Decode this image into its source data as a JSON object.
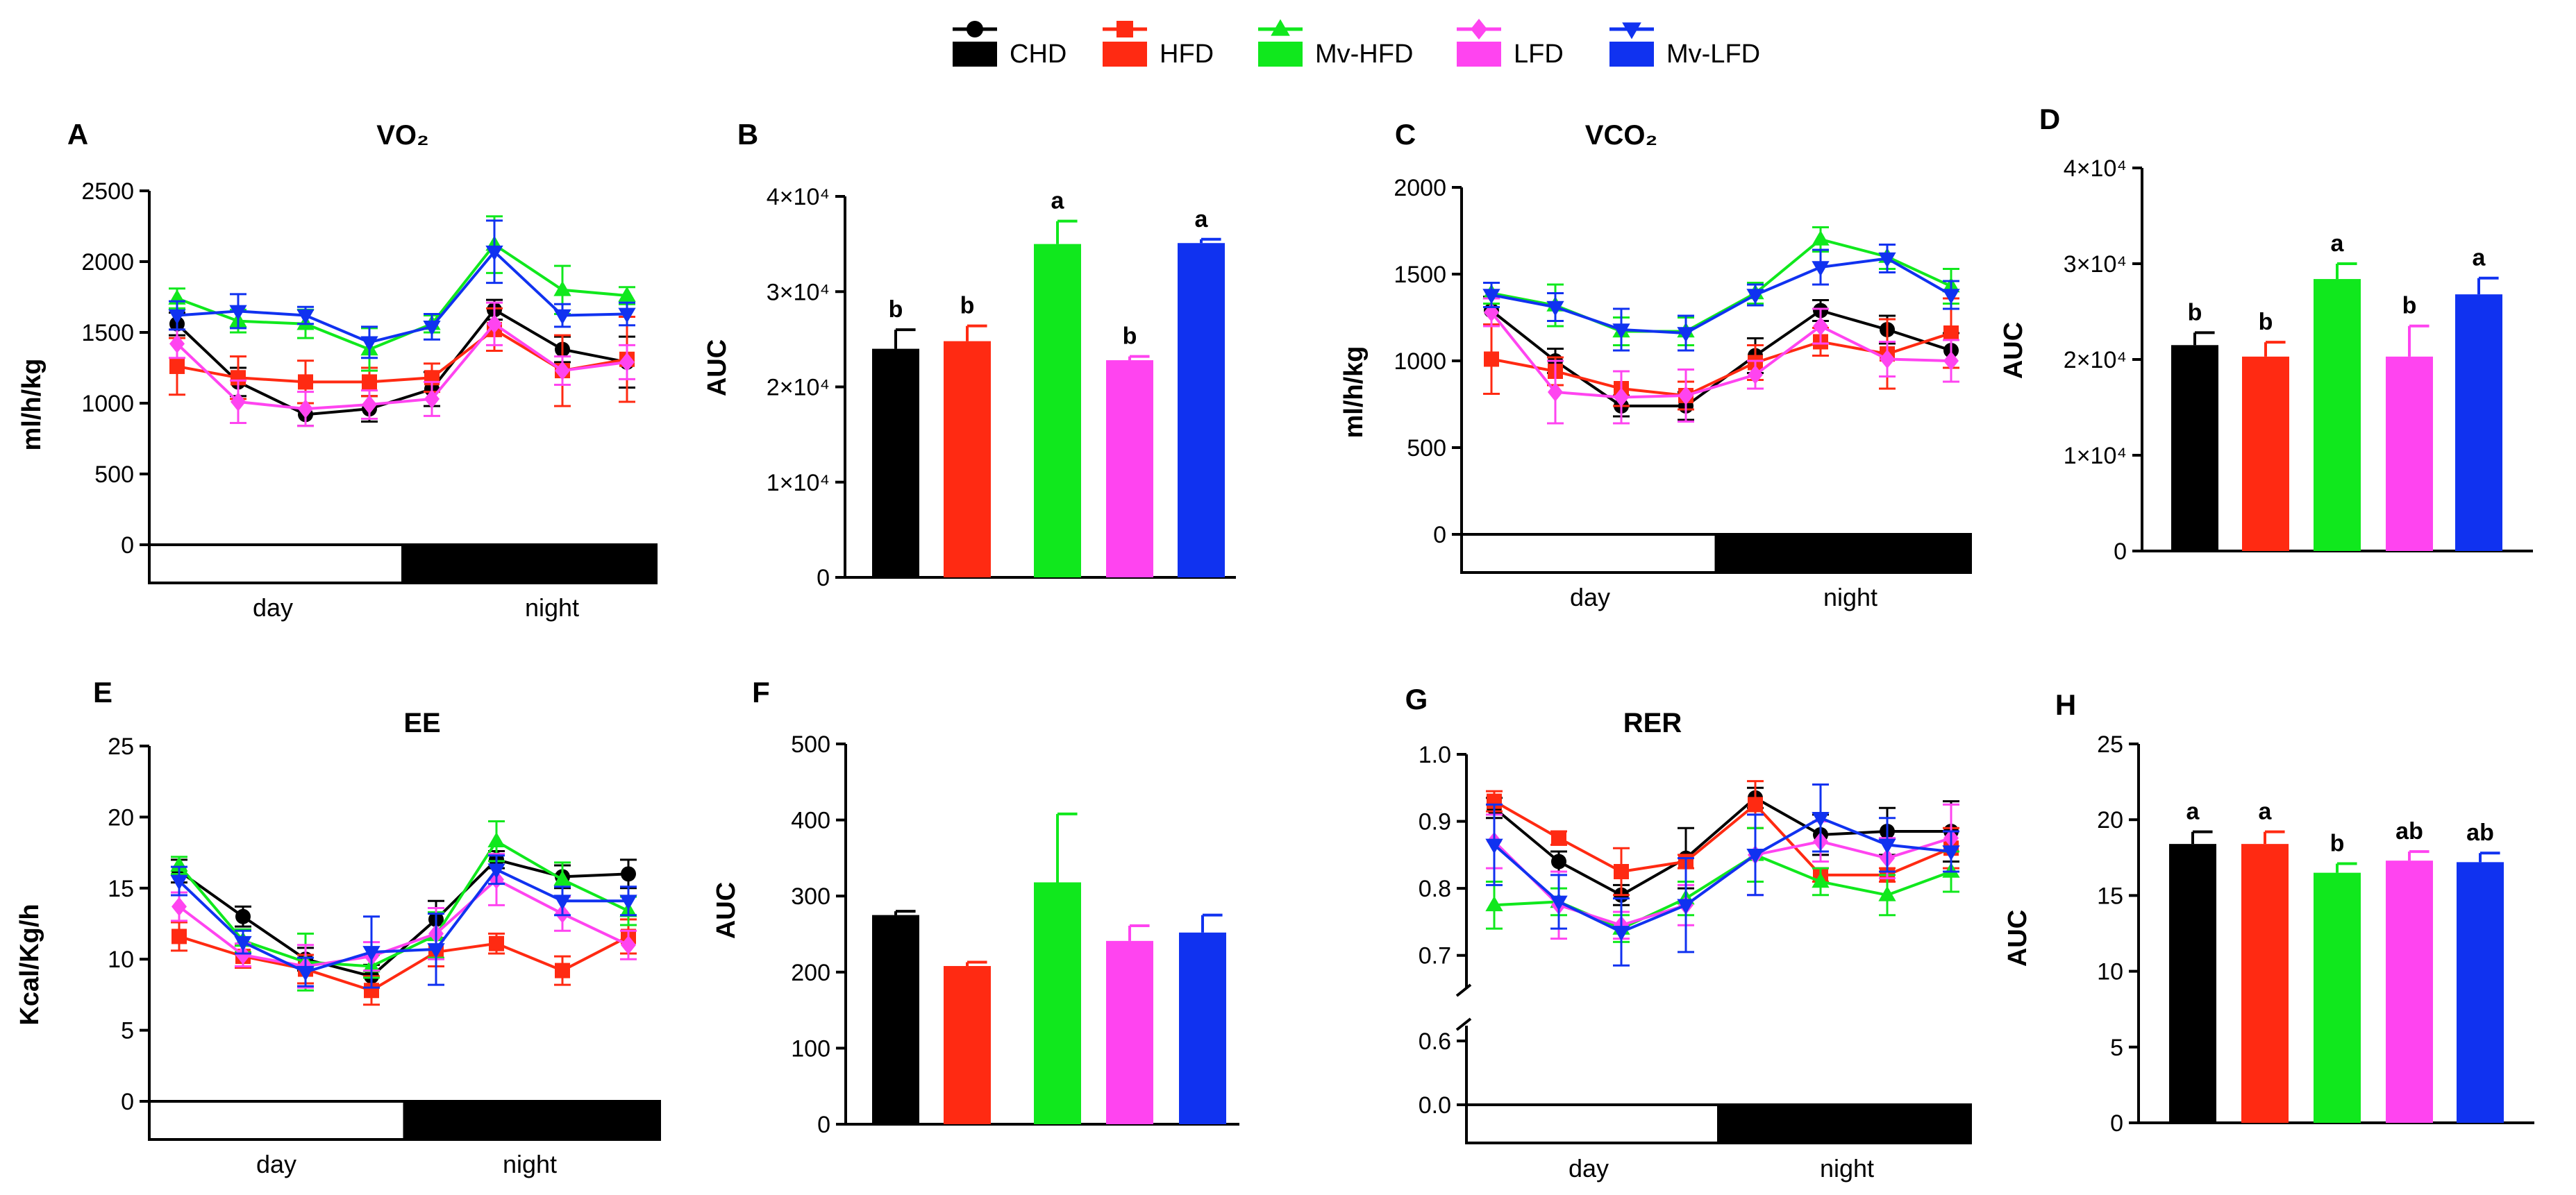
{
  "legend": [
    {
      "name": "CHD",
      "color": "#000000",
      "marker": "circle"
    },
    {
      "name": "HFD",
      "color": "#ff2a12",
      "marker": "square"
    },
    {
      "name": "Mv-HFD",
      "color": "#10e81d",
      "marker": "triangle-up"
    },
    {
      "name": "LFD",
      "color": "#ff44f0",
      "marker": "diamond"
    },
    {
      "name": "Mv-LFD",
      "color": "#1032f0",
      "marker": "triangle-down"
    }
  ],
  "chart_data": [
    {
      "panel": "A",
      "type": "line",
      "title": "VO₂",
      "ylabel": "ml/h/kg",
      "ylim": [
        0,
        2500
      ],
      "yticks": [
        0,
        500,
        1000,
        1500,
        2000,
        2500
      ],
      "yticklabels": [
        "0",
        "500",
        "1000",
        "1500",
        "2000",
        "2500"
      ],
      "x": [
        1,
        2,
        3,
        4,
        5,
        6,
        7,
        8
      ],
      "period_labels": [
        "day",
        "night"
      ],
      "series": [
        {
          "name": "CHD",
          "values": [
            1560,
            1150,
            920,
            960,
            1100,
            1660,
            1380,
            1290
          ],
          "errors": [
            80,
            100,
            80,
            90,
            120,
            70,
            90,
            180
          ]
        },
        {
          "name": "HFD",
          "values": [
            1260,
            1180,
            1150,
            1150,
            1180,
            1520,
            1230,
            1310
          ],
          "errors": [
            200,
            150,
            150,
            100,
            100,
            150,
            250,
            300
          ]
        },
        {
          "name": "Mv-HFD",
          "values": [
            1740,
            1580,
            1560,
            1380,
            1560,
            2120,
            1800,
            1760
          ],
          "errors": [
            70,
            80,
            100,
            150,
            60,
            200,
            170,
            60
          ]
        },
        {
          "name": "LFD",
          "values": [
            1420,
            1010,
            960,
            990,
            1030,
            1560,
            1230,
            1290
          ],
          "errors": [
            100,
            150,
            120,
            100,
            120,
            150,
            100,
            120
          ]
        },
        {
          "name": "Mv-LFD",
          "values": [
            1620,
            1650,
            1620,
            1430,
            1540,
            2070,
            1620,
            1630
          ],
          "errors": [
            100,
            120,
            60,
            110,
            90,
            220,
            80,
            80
          ]
        }
      ]
    },
    {
      "panel": "B",
      "type": "bar",
      "ylabel": "AUC",
      "ylim": [
        0,
        40000
      ],
      "yticks": [
        0,
        10000,
        20000,
        30000,
        40000
      ],
      "yticklabels": [
        "0",
        "1×10⁴",
        "2×10⁴",
        "3×10⁴",
        "4×10⁴"
      ],
      "categories": [
        "CHD",
        "HFD",
        "Mv-HFD",
        "LFD",
        "Mv-LFD"
      ],
      "values": [
        24000,
        24800,
        35000,
        22800,
        35100
      ],
      "errors": [
        2000,
        1600,
        2400,
        400,
        400
      ],
      "sig": [
        "b",
        "b",
        "a",
        "b",
        "a"
      ]
    },
    {
      "panel": "C",
      "type": "line",
      "title": "VCO₂",
      "ylabel": "ml/h/kg",
      "ylim": [
        0,
        2000
      ],
      "yticks": [
        0,
        500,
        1000,
        1500,
        2000
      ],
      "yticklabels": [
        "0",
        "500",
        "1000",
        "1500",
        "2000"
      ],
      "x": [
        1,
        2,
        3,
        4,
        5,
        6,
        7,
        8
      ],
      "period_labels": [
        "day",
        "night"
      ],
      "series": [
        {
          "name": "CHD",
          "values": [
            1290,
            1000,
            740,
            740,
            1030,
            1290,
            1180,
            1060
          ],
          "errors": [
            80,
            70,
            60,
            80,
            100,
            60,
            80,
            100
          ]
        },
        {
          "name": "HFD",
          "values": [
            1010,
            940,
            840,
            800,
            990,
            1110,
            1040,
            1160
          ],
          "errors": [
            200,
            80,
            100,
            80,
            100,
            80,
            200,
            200
          ]
        },
        {
          "name": "Mv-HFD",
          "values": [
            1390,
            1320,
            1170,
            1170,
            1390,
            1700,
            1600,
            1430
          ],
          "errors": [
            60,
            120,
            80,
            80,
            60,
            70,
            70,
            100
          ]
        },
        {
          "name": "LFD",
          "values": [
            1280,
            820,
            790,
            800,
            920,
            1200,
            1010,
            1000
          ],
          "errors": [
            80,
            180,
            150,
            150,
            80,
            100,
            100,
            120
          ]
        },
        {
          "name": "Mv-LFD",
          "values": [
            1380,
            1310,
            1180,
            1160,
            1380,
            1540,
            1590,
            1380
          ],
          "errors": [
            70,
            80,
            120,
            100,
            60,
            100,
            80,
            80
          ]
        }
      ]
    },
    {
      "panel": "D",
      "type": "bar",
      "ylabel": "AUC",
      "ylim": [
        0,
        40000
      ],
      "yticks": [
        0,
        10000,
        20000,
        30000,
        40000
      ],
      "yticklabels": [
        "0",
        "1×10⁴",
        "2×10⁴",
        "3×10⁴",
        "4×10⁴"
      ],
      "categories": [
        "CHD",
        "HFD",
        "Mv-HFD",
        "LFD",
        "Mv-LFD"
      ],
      "values": [
        21500,
        20300,
        28400,
        20300,
        26800
      ],
      "errors": [
        1300,
        1500,
        1600,
        3200,
        1700
      ],
      "sig": [
        "b",
        "b",
        "a",
        "b",
        "a"
      ]
    },
    {
      "panel": "E",
      "type": "line",
      "title": "EE",
      "ylabel": "Kcal/Kg/h",
      "ylim": [
        0,
        25
      ],
      "yticks": [
        0,
        5,
        10,
        15,
        20,
        25
      ],
      "yticklabels": [
        "0",
        "5",
        "10",
        "15",
        "20",
        "25"
      ],
      "x": [
        1,
        2,
        3,
        4,
        5,
        6,
        7,
        8
      ],
      "period_labels": [
        "day",
        "night"
      ],
      "series": [
        {
          "name": "CHD",
          "values": [
            16.2,
            13.0,
            10.0,
            8.8,
            12.8,
            17.0,
            15.8,
            16.0
          ],
          "errors": [
            0.8,
            0.7,
            0.8,
            0.8,
            1.3,
            0.6,
            0.8,
            1.0
          ]
        },
        {
          "name": "HFD",
          "values": [
            11.6,
            10.2,
            9.3,
            7.8,
            10.5,
            11.1,
            9.2,
            11.6
          ],
          "errors": [
            1.0,
            0.8,
            1.0,
            1.0,
            1.0,
            0.7,
            1.0,
            1.2
          ]
        },
        {
          "name": "Mv-HFD",
          "values": [
            16.6,
            11.3,
            9.8,
            9.5,
            11.7,
            18.3,
            15.6,
            13.4
          ],
          "errors": [
            0.6,
            0.8,
            2.0,
            0.8,
            1.6,
            1.4,
            1.2,
            1.0
          ]
        },
        {
          "name": "LFD",
          "values": [
            13.7,
            10.3,
            9.5,
            10.2,
            11.8,
            15.6,
            13.2,
            11.0
          ],
          "errors": [
            1.0,
            0.8,
            1.5,
            1.0,
            1.8,
            1.8,
            1.2,
            1.0
          ]
        },
        {
          "name": "Mv-LFD",
          "values": [
            15.5,
            11.2,
            9.1,
            10.5,
            10.7,
            16.3,
            14.1,
            14.1
          ],
          "errors": [
            1.0,
            0.8,
            1.0,
            2.5,
            2.5,
            1.0,
            1.0,
            1.0
          ]
        }
      ]
    },
    {
      "panel": "F",
      "type": "bar",
      "ylabel": "AUC",
      "ylim": [
        0,
        500
      ],
      "yticks": [
        0,
        100,
        200,
        300,
        400,
        500
      ],
      "yticklabels": [
        "0",
        "100",
        "200",
        "300",
        "400",
        "500"
      ],
      "categories": [
        "CHD",
        "HFD",
        "Mv-HFD",
        "LFD",
        "Mv-LFD"
      ],
      "values": [
        275,
        208,
        318,
        241,
        252
      ],
      "errors": [
        5,
        5,
        90,
        20,
        23
      ],
      "sig": [
        "",
        "",
        "",
        "",
        ""
      ]
    },
    {
      "panel": "G",
      "type": "line",
      "title": "RER",
      "ylim": [
        0.65,
        1.0
      ],
      "yticks": [
        0.7,
        0.8,
        0.9,
        1.0
      ],
      "yticklabels": [
        "0.7",
        "0.8",
        "0.9",
        "1.0"
      ],
      "lower_ticks": [
        0.0,
        0.6
      ],
      "lower_ticklabels": [
        "0.0",
        "0.6"
      ],
      "axis_break": true,
      "x": [
        1,
        2,
        3,
        4,
        5,
        6,
        7,
        8
      ],
      "period_labels": [
        "day",
        "night"
      ],
      "series": [
        {
          "name": "CHD",
          "values": [
            0.92,
            0.84,
            0.79,
            0.845,
            0.935,
            0.88,
            0.885,
            0.885
          ],
          "errors": [
            0.015,
            0.015,
            0.015,
            0.045,
            0.015,
            0.03,
            0.035,
            0.045
          ]
        },
        {
          "name": "HFD",
          "values": [
            0.93,
            0.875,
            0.825,
            0.84,
            0.925,
            0.82,
            0.82,
            0.86
          ],
          "errors": [
            0.015,
            0.01,
            0.035,
            0.01,
            0.035,
            0.01,
            0.01,
            0.03
          ]
        },
        {
          "name": "Mv-HFD",
          "values": [
            0.775,
            0.78,
            0.74,
            0.785,
            0.85,
            0.81,
            0.79,
            0.825
          ],
          "errors": [
            0.035,
            0.02,
            0.02,
            0.025,
            0.04,
            0.02,
            0.03,
            0.03
          ]
        },
        {
          "name": "LFD",
          "values": [
            0.87,
            0.775,
            0.745,
            0.775,
            0.85,
            0.87,
            0.845,
            0.875
          ],
          "errors": [
            0.04,
            0.05,
            0.02,
            0.03,
            0.06,
            0.03,
            0.03,
            0.05
          ]
        },
        {
          "name": "Mv-LFD",
          "values": [
            0.865,
            0.78,
            0.735,
            0.775,
            0.85,
            0.905,
            0.865,
            0.855
          ],
          "errors": [
            0.06,
            0.04,
            0.05,
            0.07,
            0.06,
            0.05,
            0.04,
            0.03
          ]
        }
      ]
    },
    {
      "panel": "H",
      "type": "bar",
      "ylabel": "AUC",
      "ylim": [
        0,
        25
      ],
      "yticks": [
        0,
        5,
        10,
        15,
        20,
        25
      ],
      "yticklabels": [
        "0",
        "5",
        "10",
        "15",
        "20",
        "25"
      ],
      "categories": [
        "CHD",
        "HFD",
        "Mv-HFD",
        "LFD",
        "Mv-LFD"
      ],
      "values": [
        18.4,
        18.4,
        16.5,
        17.3,
        17.2
      ],
      "errors": [
        0.8,
        0.8,
        0.6,
        0.6,
        0.6
      ],
      "sig": [
        "a",
        "a",
        "b",
        "ab",
        "ab"
      ]
    }
  ]
}
